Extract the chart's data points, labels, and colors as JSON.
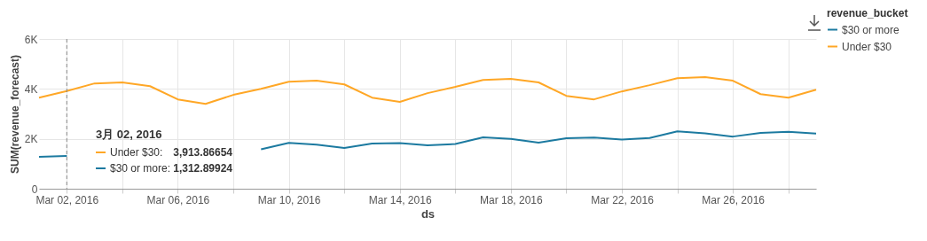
{
  "chart_data": {
    "type": "line",
    "xlabel": "ds",
    "ylabel": "SUM(revenue_forecast)",
    "legend_title": "revenue_bucket",
    "legend": "right",
    "grid": true,
    "line_style": "solid",
    "marker": "none",
    "x": [
      "2016-03-01",
      "2016-03-02",
      "2016-03-03",
      "2016-03-04",
      "2016-03-05",
      "2016-03-06",
      "2016-03-07",
      "2016-03-08",
      "2016-03-09",
      "2016-03-10",
      "2016-03-11",
      "2016-03-12",
      "2016-03-13",
      "2016-03-14",
      "2016-03-15",
      "2016-03-16",
      "2016-03-17",
      "2016-03-18",
      "2016-03-19",
      "2016-03-20",
      "2016-03-21",
      "2016-03-22",
      "2016-03-23",
      "2016-03-24",
      "2016-03-25",
      "2016-03-26",
      "2016-03-27",
      "2016-03-28",
      "2016-03-29"
    ],
    "series": [
      {
        "name": "$30 or more",
        "color": "#1c7aa0",
        "values": [
          1280,
          1312.89924,
          null,
          null,
          null,
          null,
          null,
          null,
          1580,
          1840,
          1770,
          1630,
          1810,
          1830,
          1740,
          1790,
          2060,
          2000,
          1850,
          2020,
          2050,
          1970,
          2030,
          2300,
          2220,
          2090,
          2240,
          2280,
          2210
        ]
      },
      {
        "name": "Under $30",
        "color": "#ffa726",
        "values": [
          3650,
          3913.86654,
          4220,
          4260,
          4110,
          3580,
          3400,
          3760,
          4000,
          4290,
          4330,
          4180,
          3650,
          3480,
          3830,
          4080,
          4360,
          4400,
          4260,
          3720,
          3580,
          3900,
          4150,
          4430,
          4470,
          4330,
          3790,
          3650,
          3970
        ]
      }
    ],
    "xlim": [
      "2016-03-01",
      "2016-03-29"
    ],
    "xticks": [
      {
        "value": "2016-03-02",
        "label": "Mar 02, 2016"
      },
      {
        "value": "2016-03-04",
        "label": null
      },
      {
        "value": "2016-03-06",
        "label": "Mar 06, 2016"
      },
      {
        "value": "2016-03-08",
        "label": null
      },
      {
        "value": "2016-03-10",
        "label": "Mar 10, 2016"
      },
      {
        "value": "2016-03-12",
        "label": null
      },
      {
        "value": "2016-03-14",
        "label": "Mar 14, 2016"
      },
      {
        "value": "2016-03-16",
        "label": null
      },
      {
        "value": "2016-03-18",
        "label": "Mar 18, 2016"
      },
      {
        "value": "2016-03-20",
        "label": null
      },
      {
        "value": "2016-03-22",
        "label": "Mar 22, 2016"
      },
      {
        "value": "2016-03-24",
        "label": null
      },
      {
        "value": "2016-03-26",
        "label": "Mar 26, 2016"
      },
      {
        "value": "2016-03-28",
        "label": null
      }
    ],
    "ylim": [
      0,
      6000
    ],
    "yticks": [
      0,
      {
        "value": 2000,
        "label": "2K"
      },
      {
        "value": 4000,
        "label": "4K"
      },
      {
        "value": 6000,
        "label": "6K"
      }
    ],
    "ref_lines": [
      {
        "axis": "x",
        "value": "2016-03-02",
        "color": "#888888",
        "line_style": "dashed"
      }
    ],
    "annotations": [
      "3月 02, 2016",
      "Under $30:",
      "3,913.86654",
      "$30 or more:",
      "1,312.89924"
    ]
  }
}
